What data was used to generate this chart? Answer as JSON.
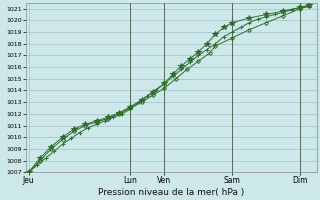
{
  "title": "Pression niveau de la mer( hPa )",
  "bg_color": "#cce8e8",
  "grid_color": "#aabbcc",
  "line_color": "#2d6e2d",
  "marker_color": "#2d6e2d",
  "ylim": [
    1007,
    1021.5
  ],
  "yticks": [
    1007,
    1008,
    1009,
    1010,
    1011,
    1012,
    1013,
    1014,
    1015,
    1016,
    1017,
    1018,
    1019,
    1020,
    1021
  ],
  "xtick_labels": [
    "Jeu",
    "Lun",
    "Ven",
    "Sam",
    "Dim"
  ],
  "xtick_positions": [
    0,
    36,
    48,
    72,
    96
  ],
  "xlim": [
    -1,
    102
  ],
  "vline_positions": [
    36,
    48,
    72,
    96
  ],
  "vline_color": "#556655",
  "series": [
    {
      "x": [
        0,
        3,
        6,
        9,
        12,
        15,
        18,
        21,
        24,
        27,
        30,
        33,
        36,
        39,
        42,
        45,
        48,
        51,
        54,
        57,
        60,
        63,
        66,
        69,
        72,
        75,
        78,
        81,
        84,
        87,
        90,
        93,
        96,
        99
      ],
      "y": [
        1007.0,
        1007.6,
        1008.2,
        1008.8,
        1009.4,
        1009.9,
        1010.4,
        1010.8,
        1011.1,
        1011.4,
        1011.7,
        1012.0,
        1012.4,
        1013.0,
        1013.5,
        1014.0,
        1014.6,
        1015.2,
        1015.8,
        1016.4,
        1017.0,
        1017.5,
        1018.0,
        1018.6,
        1019.0,
        1019.4,
        1019.8,
        1020.1,
        1020.3,
        1020.5,
        1020.7,
        1020.9,
        1021.1,
        1021.2
      ],
      "marker": "+"
    },
    {
      "x": [
        0,
        4,
        8,
        12,
        16,
        20,
        24,
        28,
        32,
        36,
        40,
        44,
        48,
        52,
        56,
        60,
        64,
        66,
        72,
        78,
        84,
        90,
        96,
        99
      ],
      "y": [
        1007.0,
        1008.0,
        1009.0,
        1009.8,
        1010.5,
        1011.0,
        1011.3,
        1011.6,
        1012.0,
        1012.5,
        1013.0,
        1013.6,
        1014.2,
        1015.0,
        1015.8,
        1016.5,
        1017.2,
        1017.8,
        1018.5,
        1019.2,
        1019.8,
        1020.4,
        1021.0,
        1021.2
      ],
      "marker": "D"
    },
    {
      "x": [
        0,
        4,
        8,
        12,
        16,
        20,
        24,
        28,
        32,
        36,
        40,
        44,
        48,
        51,
        54,
        57,
        60,
        63,
        66,
        69,
        72,
        78,
        84,
        90,
        96,
        99
      ],
      "y": [
        1007.0,
        1008.2,
        1009.2,
        1010.0,
        1010.7,
        1011.1,
        1011.4,
        1011.7,
        1012.1,
        1012.6,
        1013.2,
        1013.9,
        1014.6,
        1015.4,
        1016.1,
        1016.7,
        1017.3,
        1018.0,
        1018.8,
        1019.4,
        1019.8,
        1020.2,
        1020.5,
        1020.8,
        1021.1,
        1021.3
      ],
      "marker": "*"
    }
  ]
}
